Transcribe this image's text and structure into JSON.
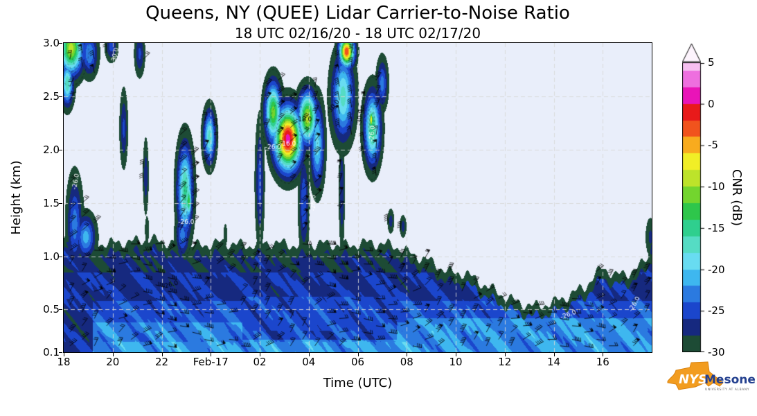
{
  "title": "Queens, NY (QUEE) Lidar Carrier-to-Noise Ratio",
  "subtitle": "18 UTC 02/16/20 - 18 UTC 02/17/20",
  "axes": {
    "xlabel": "Time (UTC)",
    "ylabel": "Height (km)"
  },
  "x_ticks": [
    {
      "t": 18,
      "label": "18"
    },
    {
      "t": 20,
      "label": "20"
    },
    {
      "t": 22,
      "label": "22"
    },
    {
      "t": 24,
      "label": "Feb-17"
    },
    {
      "t": 26,
      "label": "02"
    },
    {
      "t": 28,
      "label": "04"
    },
    {
      "t": 30,
      "label": "06"
    },
    {
      "t": 32,
      "label": "08"
    },
    {
      "t": 34,
      "label": "10"
    },
    {
      "t": 36,
      "label": "12"
    },
    {
      "t": 38,
      "label": "14"
    },
    {
      "t": 40,
      "label": "16"
    }
  ],
  "y_ticks": [
    {
      "z": 3.0,
      "label": "3.0"
    },
    {
      "z": 2.5,
      "label": "2.5"
    },
    {
      "z": 2.0,
      "label": "2.0"
    },
    {
      "z": 1.5,
      "label": "1.5"
    },
    {
      "z": 1.0,
      "label": "1.0"
    },
    {
      "z": 0.5,
      "label": "0.5"
    },
    {
      "z": 0.1,
      "label": "0.1"
    }
  ],
  "colorbar": {
    "label": "CNR (dB)",
    "tick_values": [
      5,
      0,
      -5,
      -10,
      -15,
      -20,
      -25,
      -30
    ],
    "vmin": -30,
    "vmax": 5,
    "bin_size": 2,
    "colors": [
      "#1d4b35",
      "#16297f",
      "#1b46cc",
      "#2b7ae0",
      "#3eb7ef",
      "#68dcf1",
      "#55dcc4",
      "#2fcf8e",
      "#2ec64b",
      "#73d52e",
      "#bde32a",
      "#f1ee26",
      "#f8ab1e",
      "#f1531d",
      "#e81a1a",
      "#e914b8",
      "#ee6fdf",
      "#f6bff0"
    ],
    "over_color": "#fdf4fd",
    "background_no_data": "#e9eefa"
  },
  "logo": {
    "line1": "NYS",
    "line2": "Mesonet",
    "line3": "UNIVERSITY AT ALBANY",
    "orange": "#f29c1f",
    "blue": "#23408f"
  },
  "chart_data": {
    "type": "heatmap",
    "title": "Queens, NY (QUEE) Lidar Carrier-to-Noise Ratio",
    "subtitle": "18 UTC 02/16/20 - 18 UTC 02/17/20",
    "xlabel": "Time (UTC)",
    "ylabel": "Height (km)",
    "value_label": "CNR (dB)",
    "x_hours_range": [
      18,
      42
    ],
    "y_km_range": [
      0.1,
      3.0
    ],
    "value_range_db": [
      -30,
      5
    ],
    "boundary_layer_top_km": [
      [
        18,
        1.2
      ],
      [
        18.8,
        1.14
      ],
      [
        19.5,
        1.12
      ],
      [
        20.5,
        1.13
      ],
      [
        21.5,
        1.16
      ],
      [
        22.5,
        1.12
      ],
      [
        23.5,
        1.1
      ],
      [
        24.5,
        1.13
      ],
      [
        25.5,
        1.1
      ],
      [
        26.5,
        1.13
      ],
      [
        27.5,
        1.1
      ],
      [
        28.5,
        1.12
      ],
      [
        29.5,
        1.1
      ],
      [
        30.5,
        1.13
      ],
      [
        31.5,
        1.1
      ],
      [
        32.2,
        1.02
      ],
      [
        33,
        0.95
      ],
      [
        33.7,
        0.85
      ],
      [
        34.4,
        0.84
      ],
      [
        35.1,
        0.74
      ],
      [
        35.8,
        0.65
      ],
      [
        36.5,
        0.57
      ],
      [
        37.2,
        0.53
      ],
      [
        37.9,
        0.56
      ],
      [
        38.6,
        0.63
      ],
      [
        39.3,
        0.72
      ],
      [
        40,
        0.9
      ],
      [
        40.5,
        0.82
      ],
      [
        41,
        0.84
      ],
      [
        41.5,
        0.9
      ],
      [
        41.85,
        1.0
      ],
      [
        42,
        1.25
      ]
    ],
    "bl_profile_db": [
      {
        "z_below": 0.2,
        "cnr": -22.0
      },
      {
        "z_below": 0.38,
        "cnr": -22.8
      },
      {
        "z_below": 0.58,
        "cnr": -24.6
      },
      {
        "z_below": 0.85,
        "cnr": -26.3
      },
      {
        "z_below": 9,
        "cnr": -27.5
      }
    ],
    "elevated_features": {
      "format": [
        "t_center_hr",
        "z_center_km",
        "t_sigma_hr",
        "z_sigma_km",
        "peak_cnr_db"
      ],
      "list": [
        [
          18.3,
          2.95,
          0.45,
          0.22,
          -9
        ],
        [
          18.15,
          2.62,
          0.22,
          0.18,
          -16
        ],
        [
          19.05,
          2.9,
          0.3,
          0.18,
          -22
        ],
        [
          19.95,
          2.97,
          0.22,
          0.12,
          -25
        ],
        [
          18.45,
          1.3,
          0.28,
          0.38,
          -23
        ],
        [
          18.9,
          1.18,
          0.35,
          0.18,
          -21
        ],
        [
          20.45,
          2.2,
          0.14,
          0.3,
          -25.5
        ],
        [
          21.1,
          2.9,
          0.18,
          0.18,
          -25.5
        ],
        [
          21.35,
          1.75,
          0.1,
          0.3,
          -26.5
        ],
        [
          22.95,
          1.62,
          0.28,
          0.38,
          -15
        ],
        [
          23.1,
          1.52,
          0.12,
          0.15,
          -12.5
        ],
        [
          22.85,
          1.2,
          0.25,
          0.18,
          -23
        ],
        [
          23.95,
          2.12,
          0.22,
          0.22,
          -17
        ],
        [
          26.0,
          1.7,
          0.16,
          0.5,
          -25
        ],
        [
          27.15,
          2.1,
          0.5,
          0.26,
          1.0
        ],
        [
          26.55,
          2.35,
          0.3,
          0.25,
          -11
        ],
        [
          27.95,
          2.3,
          0.35,
          0.22,
          -9
        ],
        [
          27.8,
          1.5,
          0.18,
          0.4,
          -24
        ],
        [
          28.35,
          2.05,
          0.25,
          0.35,
          -19
        ],
        [
          29.4,
          2.5,
          0.4,
          0.35,
          -17
        ],
        [
          29.55,
          2.92,
          0.28,
          0.13,
          -2
        ],
        [
          29.35,
          1.6,
          0.1,
          0.45,
          -26
        ],
        [
          30.6,
          2.2,
          0.3,
          0.3,
          -14
        ],
        [
          30.55,
          2.28,
          0.08,
          0.08,
          -6
        ],
        [
          31.0,
          2.62,
          0.2,
          0.2,
          -23
        ],
        [
          31.35,
          1.33,
          0.12,
          0.1,
          -27
        ],
        [
          31.85,
          1.28,
          0.12,
          0.09,
          -27
        ],
        [
          41.95,
          1.18,
          0.18,
          0.16,
          -27.5
        ],
        [
          21.4,
          1.25,
          0.08,
          0.12,
          -28
        ],
        [
          24.6,
          1.2,
          0.07,
          0.1,
          -28
        ]
      ]
    },
    "contour_labels": [
      {
        "t": 20.1,
        "z": 2.88,
        "text": "-30.0",
        "color": "#ffffff",
        "rot_deg": -75
      },
      {
        "t": 18.5,
        "z": 1.7,
        "text": "-26.0",
        "color": "#ffffff",
        "rot_deg": -80
      },
      {
        "t": 22.35,
        "z": 0.73,
        "text": "-26.0",
        "color": "#000000",
        "rot_deg": -15
      },
      {
        "t": 23.0,
        "z": 1.32,
        "text": "-26.0",
        "color": "#ffffff",
        "rot_deg": 0
      },
      {
        "t": 26.55,
        "z": 2.02,
        "text": "-26.0",
        "color": "#ffffff",
        "rot_deg": 0
      },
      {
        "t": 27.15,
        "z": 2.05,
        "text": "-16.0",
        "color": "#ffffff",
        "rot_deg": 0
      },
      {
        "t": 27.8,
        "z": 2.28,
        "text": "-18.0",
        "color": "#000000",
        "rot_deg": 0
      },
      {
        "t": 28.2,
        "z": 1.5,
        "text": "-26.0",
        "color": "#ffffff",
        "rot_deg": -88
      },
      {
        "t": 29.0,
        "z": 2.4,
        "text": "-30.0",
        "color": "#000000",
        "rot_deg": -50
      },
      {
        "t": 30.1,
        "z": 2.3,
        "text": "-30.0",
        "color": "#000000",
        "rot_deg": -85
      },
      {
        "t": 30.6,
        "z": 2.15,
        "text": "-26.0",
        "color": "#ffffff",
        "rot_deg": -85
      },
      {
        "t": 38.6,
        "z": 0.45,
        "text": "-26.0",
        "color": "#ffffff",
        "rot_deg": -20
      },
      {
        "t": 41.3,
        "z": 0.55,
        "text": "-26.0",
        "color": "#ffffff",
        "rot_deg": -60
      }
    ],
    "wind_barbs_overlay": true,
    "grid": {
      "style": "dashed",
      "horizontal_km": [
        0.5,
        1.0,
        1.5,
        2.0,
        2.5
      ],
      "vertical_hr": [
        20,
        22,
        24,
        26,
        28,
        30,
        32,
        34,
        36,
        38,
        40
      ]
    }
  }
}
